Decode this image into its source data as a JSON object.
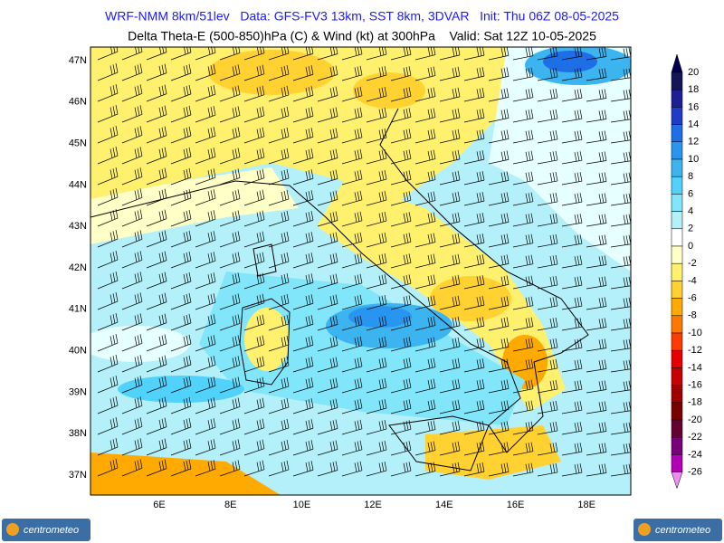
{
  "header": {
    "title": "WRF-NMM 8km/51lev   Data: GFS-FV3 13km, SST 8km, 3DVAR   Init: Thu 06Z 08-05-2025",
    "subtitle": "Delta Theta-E (500-850)hPa (C) & Wind (kt) at 300hPa    Valid: Sat 12Z 10-05-2025"
  },
  "map": {
    "lat_labels": [
      "47N",
      "46N",
      "45N",
      "44N",
      "43N",
      "42N",
      "41N",
      "40N",
      "39N",
      "38N",
      "37N"
    ],
    "lon_labels": [
      "6E",
      "8E",
      "10E",
      "12E",
      "14E",
      "16E",
      "18E"
    ]
  },
  "colorbar": {
    "ticks": [
      20,
      18,
      16,
      14,
      12,
      10,
      8,
      6,
      4,
      2,
      0,
      -2,
      -4,
      -6,
      -8,
      -10,
      -12,
      -14,
      -16,
      -18,
      -20,
      -22,
      -24,
      -26
    ],
    "colors": [
      "#14145a",
      "#1e1e96",
      "#1e3cc8",
      "#1e6ee6",
      "#2896f0",
      "#3cb4f0",
      "#50d2fa",
      "#82e6fa",
      "#b4f0fa",
      "#ffffff",
      "#ffffc8",
      "#fff06e",
      "#ffd232",
      "#ffaa00",
      "#ff7800",
      "#ff3c00",
      "#e60000",
      "#c80000",
      "#a00000",
      "#780000",
      "#640032",
      "#780078",
      "#b400b4"
    ],
    "top_color": "#000050",
    "bottom_color": "#f08cf0"
  },
  "footer": {
    "logo_left": "centrometeo",
    "logo_right": "centrometeo"
  }
}
